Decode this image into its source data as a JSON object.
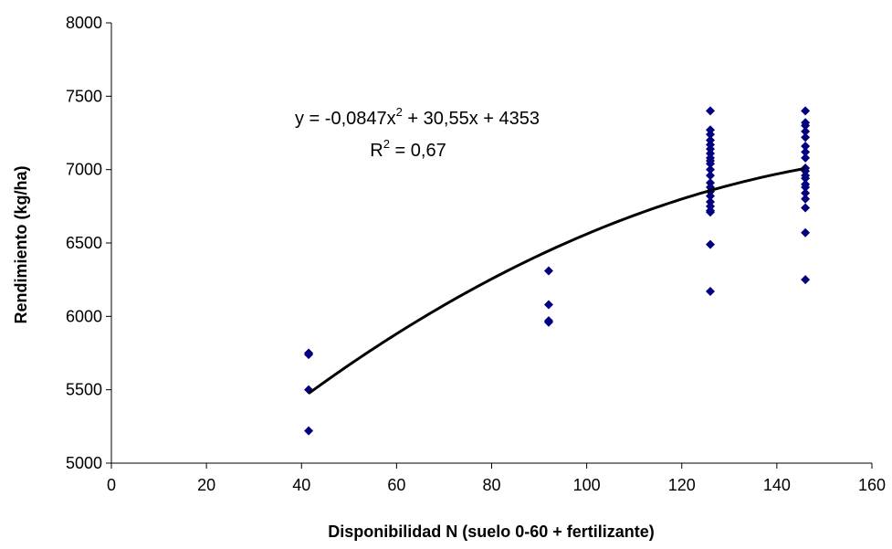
{
  "chart_data": {
    "type": "scatter",
    "xlabel": "Disponibilidad N (suelo 0-60 + fertilizante)",
    "ylabel": "Rendimiento (kg/ha)",
    "xlim": [
      0,
      160
    ],
    "ylim": [
      5000,
      8000
    ],
    "x_ticks": [
      "0",
      "20",
      "40",
      "60",
      "80",
      "100",
      "120",
      "140",
      "160"
    ],
    "y_ticks": [
      "5000",
      "5500",
      "6000",
      "6500",
      "7000",
      "7500",
      "8000"
    ],
    "x_tick_values": [
      0,
      20,
      40,
      60,
      80,
      100,
      120,
      140,
      160
    ],
    "y_tick_values": [
      5000,
      5500,
      6000,
      6500,
      7000,
      7500,
      8000
    ],
    "grid": false,
    "marker_color": "#000080",
    "trendline_color": "#000000",
    "series": [
      {
        "type": "scatter",
        "x": [
          41.5,
          41.5,
          41.5,
          41.5,
          92,
          92,
          92,
          92,
          126,
          126,
          126,
          126,
          126,
          126,
          126,
          126,
          126,
          126,
          126,
          126,
          126,
          126,
          126,
          126,
          126,
          126,
          126,
          126,
          126,
          126,
          146,
          146,
          146,
          146,
          146,
          146,
          146,
          146,
          146,
          146,
          146,
          146,
          146,
          146,
          146,
          146,
          146,
          146,
          146
        ],
        "y": [
          5740,
          5750,
          5500,
          5220,
          6310,
          6080,
          5970,
          5960,
          7400,
          7270,
          7240,
          7200,
          7170,
          7140,
          7110,
          7080,
          7060,
          7040,
          7000,
          6960,
          6910,
          6880,
          6820,
          6780,
          6750,
          6720,
          6710,
          6490,
          6170,
          6850,
          7400,
          7320,
          7300,
          7260,
          7220,
          7160,
          7120,
          7080,
          7010,
          6990,
          6960,
          6940,
          6900,
          6880,
          6840,
          6800,
          6740,
          6570,
          6250
        ]
      },
      {
        "type": "line",
        "x_range": [
          41.5,
          146
        ],
        "coefficients": [
          -0.0847,
          30.55,
          4353
        ]
      }
    ],
    "annotations": {
      "equation_line1_a": "y = -0,0847x",
      "equation_line1_sup": "2",
      "equation_line1_b": " + 30,55x + 4353",
      "r2_a": "R",
      "r2_sup": "2",
      "r2_b": " = 0,67"
    }
  }
}
